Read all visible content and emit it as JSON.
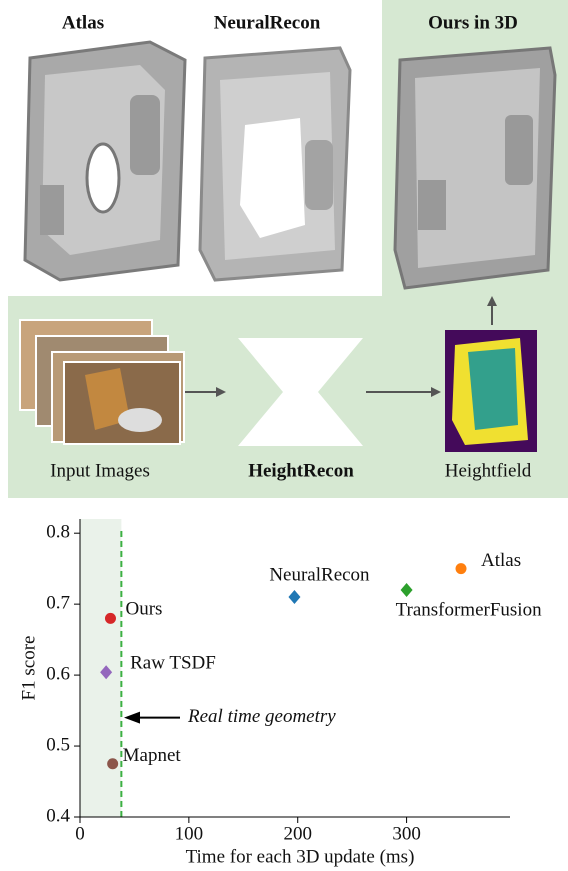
{
  "figure": {
    "panels": [
      {
        "title": "Atlas",
        "color": "#b5651d"
      },
      {
        "title": "NeuralRecon",
        "color": "#4a80c8"
      },
      {
        "title": "Ours in 3D",
        "color": "#c0141c"
      }
    ],
    "pipeline": [
      "Input Images",
      "HeightRecon",
      "Heightfield"
    ]
  },
  "chart_data": {
    "type": "scatter",
    "xlabel": "Time for each 3D update (ms)",
    "ylabel": "F1 score",
    "xlim": [
      0,
      395
    ],
    "ylim": [
      0.4,
      0.82
    ],
    "xticks": [
      0,
      100,
      200,
      300
    ],
    "yticks": [
      0.4,
      0.5,
      0.6,
      0.7,
      0.8
    ],
    "threshold_x": 38,
    "threshold_color": "#3cb043",
    "annotation": "Real time geometry",
    "series": [
      {
        "name": "Ours",
        "color": "#d62728",
        "marker": "circle",
        "x": [
          28
        ],
        "values": [
          0.68
        ]
      },
      {
        "name": "Raw TSDF",
        "color": "#9467bd",
        "marker": "diamond",
        "x": [
          24
        ],
        "values": [
          0.604
        ]
      },
      {
        "name": "Mapnet",
        "color": "#8c564b",
        "marker": "circle",
        "x": [
          30
        ],
        "values": [
          0.475
        ]
      },
      {
        "name": "NeuralRecon",
        "color": "#1f77b4",
        "marker": "diamond",
        "x": [
          197
        ],
        "values": [
          0.71
        ]
      },
      {
        "name": "TransformerFusion",
        "color": "#2ca02c",
        "marker": "diamond",
        "x": [
          300
        ],
        "values": [
          0.72
        ]
      },
      {
        "name": "Atlas",
        "color": "#ff7f0e",
        "marker": "circle",
        "x": [
          350
        ],
        "values": [
          0.75
        ]
      }
    ]
  }
}
